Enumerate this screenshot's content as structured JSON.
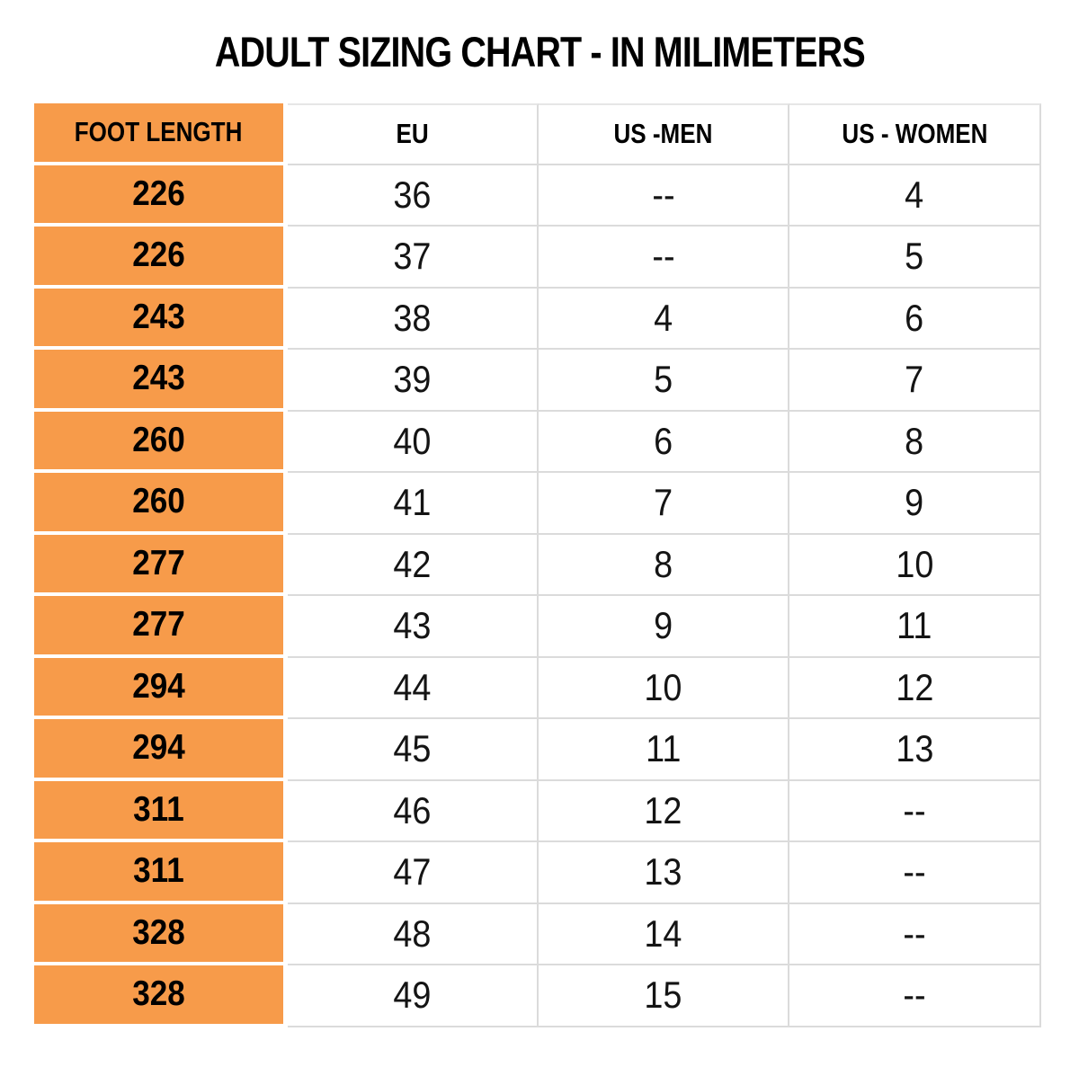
{
  "chart_data": {
    "type": "table",
    "title": "ADULT SIZING CHART - IN MILIMETERS",
    "columns": [
      "FOOT LENGTH",
      "EU",
      "US -MEN",
      "US - WOMEN"
    ],
    "rows": [
      [
        "226",
        "36",
        "--",
        "4"
      ],
      [
        "226",
        "37",
        "--",
        "5"
      ],
      [
        "243",
        "38",
        "4",
        "6"
      ],
      [
        "243",
        "39",
        "5",
        "7"
      ],
      [
        "260",
        "40",
        "6",
        "8"
      ],
      [
        "260",
        "41",
        "7",
        "9"
      ],
      [
        "277",
        "42",
        "8",
        "10"
      ],
      [
        "277",
        "43",
        "9",
        "11"
      ],
      [
        "294",
        "44",
        "10",
        "12"
      ],
      [
        "294",
        "45",
        "11",
        "13"
      ],
      [
        "311",
        "46",
        "12",
        "--"
      ],
      [
        "311",
        "47",
        "13",
        "--"
      ],
      [
        "328",
        "48",
        "14",
        "--"
      ],
      [
        "328",
        "49",
        "15",
        "--"
      ]
    ],
    "layout": {
      "highlighted_column": "FOOT LENGTH",
      "grid": true,
      "legend": "none"
    }
  },
  "colors": {
    "foot_length_column": "#F79B4A",
    "grid_line": "#DBDBDB",
    "text": "#000000",
    "background": "#FFFFFF"
  }
}
